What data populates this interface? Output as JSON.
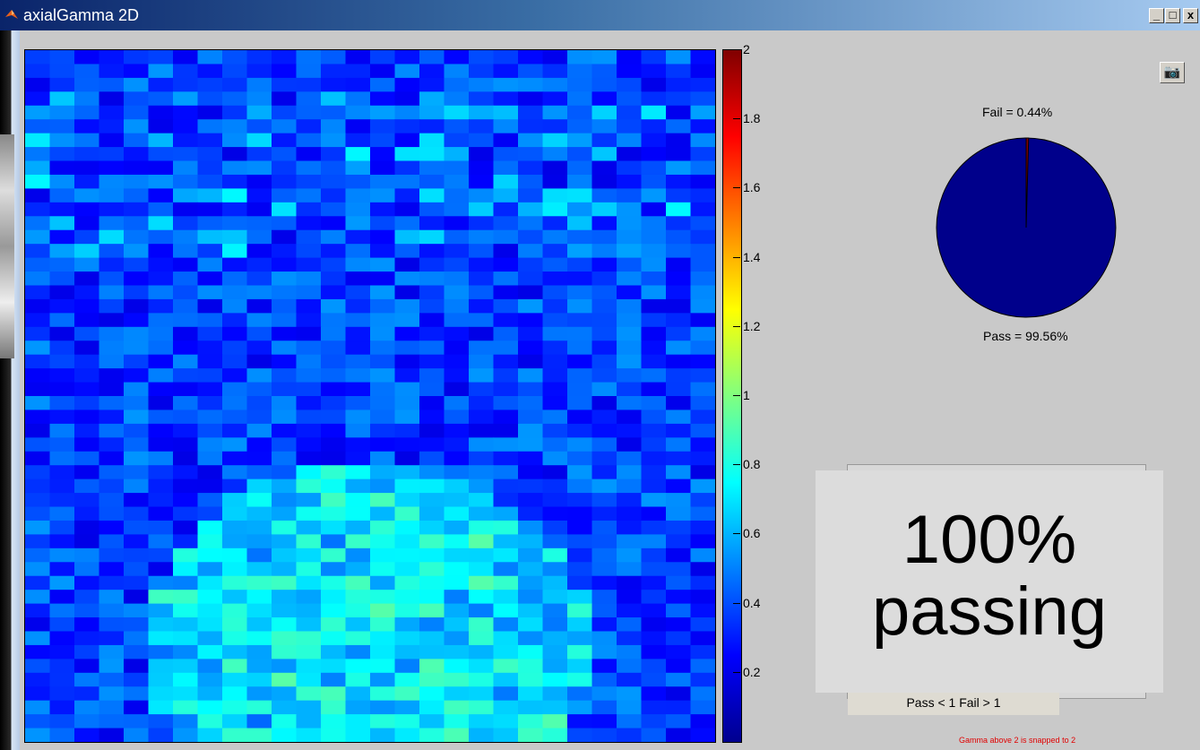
{
  "window": {
    "title": "axialGamma 2D",
    "buttons": {
      "minimize": "_",
      "maximize": "□",
      "close": "x"
    }
  },
  "colorbar": {
    "ticks": [
      "2",
      "1.8",
      "1.6",
      "1.4",
      "1.2",
      "1",
      "0.8",
      "0.6",
      "0.4",
      "0.2"
    ]
  },
  "toolbar": {
    "camera_icon": "camera-icon"
  },
  "pie": {
    "fail_label": "Fail = 0.44%",
    "pass_label": "Pass = 99.56%",
    "colors": {
      "pass": "#00008b",
      "fail": "#800000"
    }
  },
  "legend": {
    "text": "Pass < 1   Fail > 1"
  },
  "overlay": {
    "line1": "100%",
    "line2": "passing"
  },
  "footnote": "Gamma above 2 is snapped to 2"
}
